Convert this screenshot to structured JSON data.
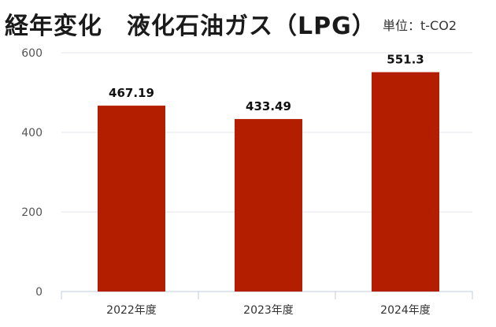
{
  "header": {
    "title": "経年変化　液化石油ガス（LPG）",
    "unit": "単位：t-CO2"
  },
  "colors": {
    "bar": "#b31d00",
    "grid": "#e2e6ee",
    "axis": "#c0ccdd"
  },
  "chart_data": {
    "type": "bar",
    "title": "経年変化　液化石油ガス（LPG）",
    "unit_label": "単位：t-CO2",
    "categories": [
      "2022年度",
      "2023年度",
      "2024年度"
    ],
    "values": [
      467.19,
      433.49,
      551.3
    ],
    "value_labels": [
      "467.19",
      "433.49",
      "551.3"
    ],
    "ylim": [
      0,
      600
    ],
    "yticks": [
      0,
      200,
      400,
      600
    ],
    "grid": true
  }
}
